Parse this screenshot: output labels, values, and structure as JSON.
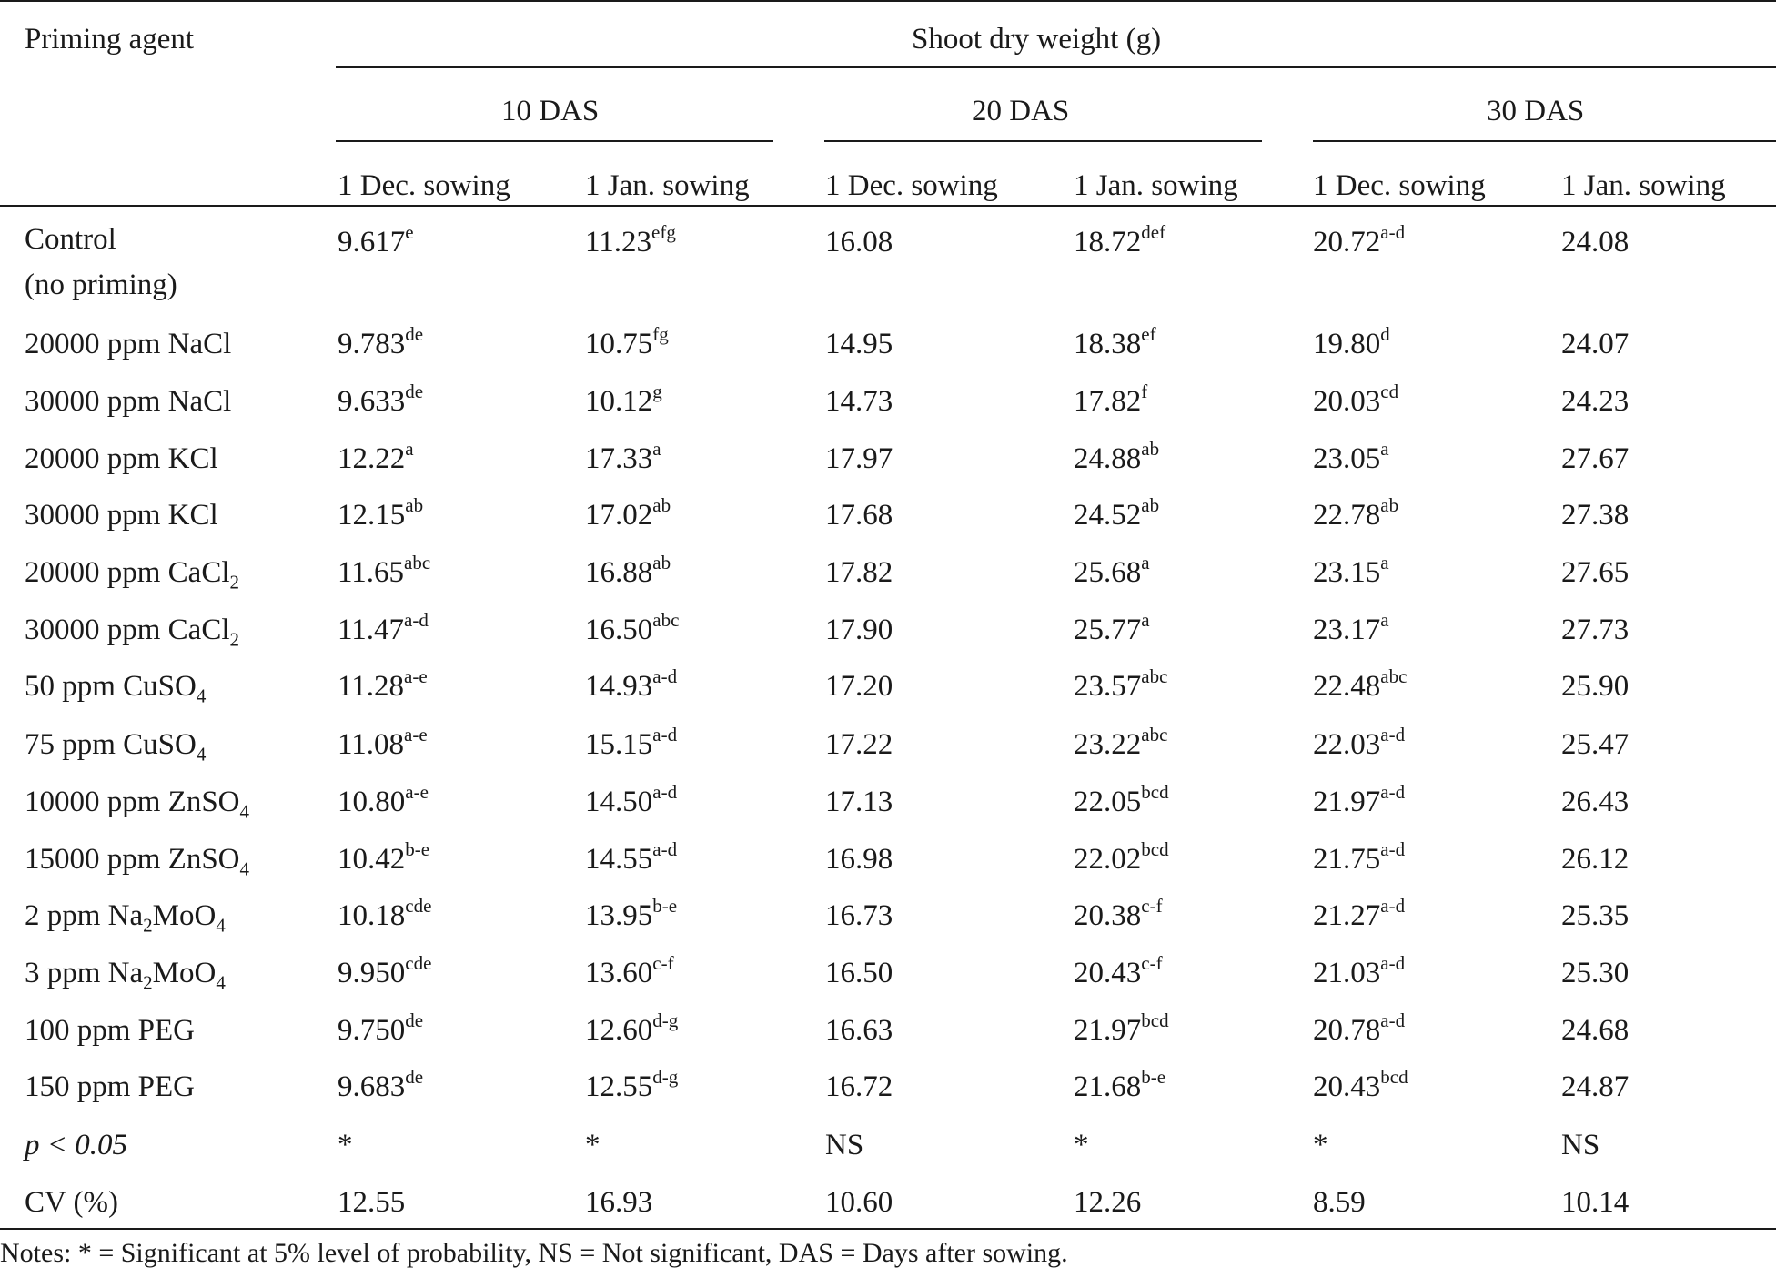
{
  "table": {
    "header": {
      "row_label": "Priming agent",
      "group_title": "Shoot dry weight (g)",
      "periods": [
        "10 DAS",
        "20 DAS",
        "30 DAS"
      ],
      "sowings": [
        "1 Dec. sowing",
        "1 Jan. sowing",
        "1 Dec. sowing",
        "1 Jan. sowing",
        "1 Dec. sowing",
        "1 Jan. sowing"
      ]
    },
    "rows": [
      {
        "agent": [
          "Control",
          "(no priming)"
        ],
        "cells": [
          [
            "9.617",
            "e"
          ],
          [
            "11.23",
            "efg"
          ],
          [
            "16.08",
            ""
          ],
          [
            "18.72",
            "def"
          ],
          [
            "20.72",
            "a-d"
          ],
          [
            "24.08",
            ""
          ]
        ]
      },
      {
        "agent": [
          "20000 ppm NaCl"
        ],
        "cells": [
          [
            "9.783",
            "de"
          ],
          [
            "10.75",
            "fg"
          ],
          [
            "14.95",
            ""
          ],
          [
            "18.38",
            "ef"
          ],
          [
            "19.80",
            "d"
          ],
          [
            "24.07",
            ""
          ]
        ]
      },
      {
        "agent": [
          "30000 ppm NaCl"
        ],
        "cells": [
          [
            "9.633",
            "de"
          ],
          [
            "10.12",
            "g"
          ],
          [
            "14.73",
            ""
          ],
          [
            "17.82",
            "f"
          ],
          [
            "20.03",
            "cd"
          ],
          [
            "24.23",
            ""
          ]
        ]
      },
      {
        "agent": [
          "20000 ppm KCl"
        ],
        "cells": [
          [
            "12.22",
            "a"
          ],
          [
            "17.33",
            "a"
          ],
          [
            "17.97",
            ""
          ],
          [
            "24.88",
            "ab"
          ],
          [
            "23.05",
            "a"
          ],
          [
            "27.67",
            ""
          ]
        ]
      },
      {
        "agent": [
          "30000 ppm KCl"
        ],
        "cells": [
          [
            "12.15",
            "ab"
          ],
          [
            "17.02",
            "ab"
          ],
          [
            "17.68",
            ""
          ],
          [
            "24.52",
            "ab"
          ],
          [
            "22.78",
            "ab"
          ],
          [
            "27.38",
            ""
          ]
        ]
      },
      {
        "agent": [
          "20000 ppm CaCl",
          "2",
          ""
        ],
        "cells": [
          [
            "11.65",
            "abc"
          ],
          [
            "16.88",
            "ab"
          ],
          [
            "17.82",
            ""
          ],
          [
            "25.68",
            "a"
          ],
          [
            "23.15",
            "a"
          ],
          [
            "27.65",
            ""
          ]
        ]
      },
      {
        "agent": [
          "30000 ppm CaCl",
          "2",
          ""
        ],
        "cells": [
          [
            "11.47",
            "a-d"
          ],
          [
            "16.50",
            "abc"
          ],
          [
            "17.90",
            ""
          ],
          [
            "25.77",
            "a"
          ],
          [
            "23.17",
            "a"
          ],
          [
            "27.73",
            ""
          ]
        ]
      },
      {
        "agent": [
          "50 ppm CuSO",
          "4",
          ""
        ],
        "cells": [
          [
            "11.28",
            "a-e"
          ],
          [
            "14.93",
            "a-d"
          ],
          [
            "17.20",
            ""
          ],
          [
            "23.57",
            "abc"
          ],
          [
            "22.48",
            "abc"
          ],
          [
            "25.90",
            ""
          ]
        ]
      },
      {
        "agent": [
          "75 ppm CuSO",
          "4",
          ""
        ],
        "cells": [
          [
            "11.08",
            "a-e"
          ],
          [
            "15.15",
            "a-d"
          ],
          [
            "17.22",
            ""
          ],
          [
            "23.22",
            "abc"
          ],
          [
            "22.03",
            "a-d"
          ],
          [
            "25.47",
            ""
          ]
        ]
      },
      {
        "agent": [
          "10000 ppm ZnSO",
          "4",
          ""
        ],
        "cells": [
          [
            "10.80",
            "a-e"
          ],
          [
            "14.50",
            "a-d"
          ],
          [
            "17.13",
            ""
          ],
          [
            "22.05",
            "bcd"
          ],
          [
            "21.97",
            "a-d"
          ],
          [
            "26.43",
            ""
          ]
        ]
      },
      {
        "agent": [
          "15000 ppm ZnSO",
          "4",
          ""
        ],
        "cells": [
          [
            "10.42",
            "b-e"
          ],
          [
            "14.55",
            "a-d"
          ],
          [
            "16.98",
            ""
          ],
          [
            "22.02",
            "bcd"
          ],
          [
            "21.75",
            "a-d"
          ],
          [
            "26.12",
            ""
          ]
        ]
      },
      {
        "agent": [
          "2 ppm Na",
          "2",
          "MoO",
          "4",
          ""
        ],
        "cells": [
          [
            "10.18",
            "cde"
          ],
          [
            "13.95",
            "b-e"
          ],
          [
            "16.73",
            ""
          ],
          [
            "20.38",
            "c-f"
          ],
          [
            "21.27",
            "a-d"
          ],
          [
            "25.35",
            ""
          ]
        ]
      },
      {
        "agent": [
          "3 ppm Na",
          "2",
          "MoO",
          "4",
          ""
        ],
        "cells": [
          [
            "9.950",
            "cde"
          ],
          [
            "13.60",
            "c-f"
          ],
          [
            "16.50",
            ""
          ],
          [
            "20.43",
            "c-f"
          ],
          [
            "21.03",
            "a-d"
          ],
          [
            "25.30",
            ""
          ]
        ]
      },
      {
        "agent": [
          "100 ppm PEG"
        ],
        "cells": [
          [
            "9.750",
            "de"
          ],
          [
            "12.60",
            "d-g"
          ],
          [
            "16.63",
            ""
          ],
          [
            "21.97",
            "bcd"
          ],
          [
            "20.78",
            "a-d"
          ],
          [
            "24.68",
            ""
          ]
        ]
      },
      {
        "agent": [
          "150 ppm PEG"
        ],
        "cells": [
          [
            "9.683",
            "de"
          ],
          [
            "12.55",
            "d-g"
          ],
          [
            "16.72",
            ""
          ],
          [
            "21.68",
            "b-e"
          ],
          [
            "20.43",
            "bcd"
          ],
          [
            "24.87",
            ""
          ]
        ]
      },
      {
        "agent": [
          "p < 0.05"
        ],
        "italic": true,
        "cells": [
          [
            "*",
            ""
          ],
          [
            "*",
            ""
          ],
          [
            "NS",
            ""
          ],
          [
            "*",
            ""
          ],
          [
            "*",
            ""
          ],
          [
            "NS",
            ""
          ]
        ]
      },
      {
        "agent": [
          "CV (%)"
        ],
        "cells": [
          [
            "12.55",
            ""
          ],
          [
            "16.93",
            ""
          ],
          [
            "10.60",
            ""
          ],
          [
            "12.26",
            ""
          ],
          [
            "8.59",
            ""
          ],
          [
            "10.14",
            ""
          ]
        ]
      }
    ],
    "notes": "Notes: * = Significant at 5% level of probability, NS = Not significant, DAS = Days after sowing."
  }
}
